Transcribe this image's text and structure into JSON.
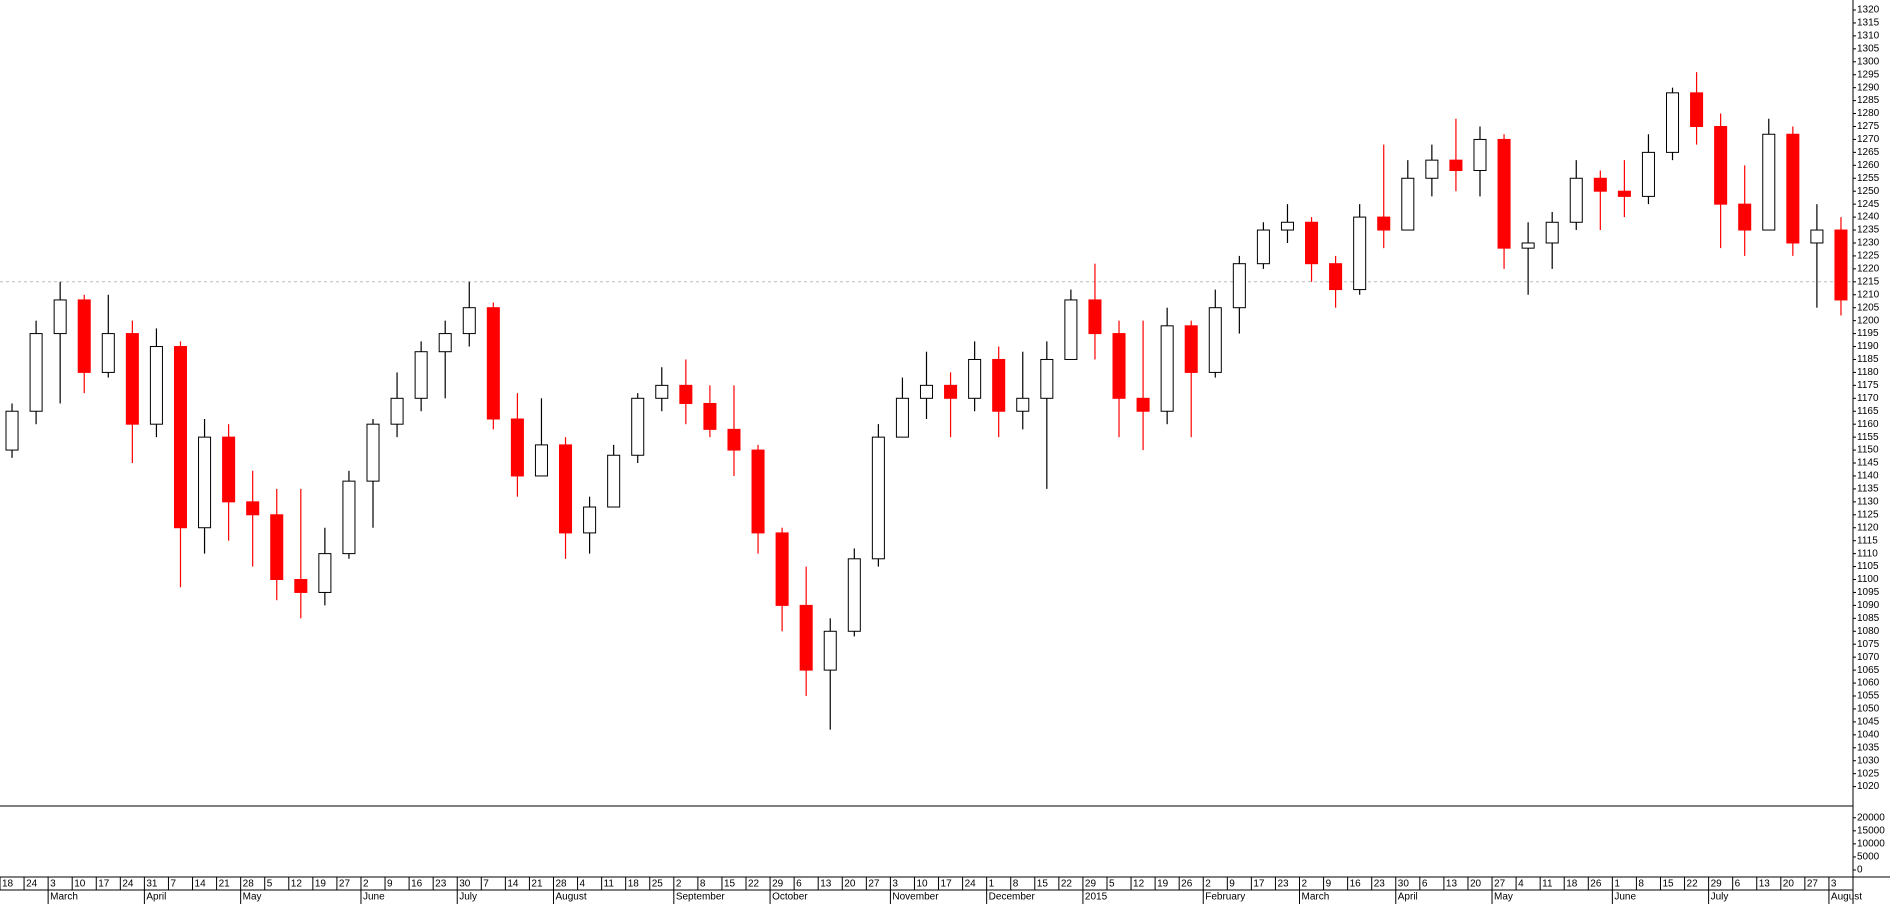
{
  "chart_data": {
    "type": "candlestick",
    "categories": [
      "18",
      "24",
      "3",
      "10",
      "17",
      "24",
      "31",
      "7",
      "14",
      "21",
      "28",
      "5",
      "12",
      "19",
      "27",
      "2",
      "9",
      "16",
      "23",
      "30",
      "7",
      "14",
      "21",
      "28",
      "4",
      "11",
      "18",
      "25",
      "2",
      "8",
      "15",
      "22",
      "29",
      "6",
      "13",
      "20",
      "27",
      "3",
      "10",
      "17",
      "24",
      "1",
      "8",
      "15",
      "22",
      "29",
      "5",
      "12",
      "19",
      "26",
      "2",
      "9",
      "17",
      "23",
      "2",
      "9",
      "16",
      "23",
      "30",
      "6",
      "13",
      "20",
      "27",
      "4",
      "11",
      "18",
      "26",
      "1",
      "8",
      "15",
      "22",
      "29",
      "6",
      "13",
      "20",
      "27",
      "3"
    ],
    "x_groups": [
      null,
      null,
      "March",
      null,
      null,
      null,
      "April",
      null,
      null,
      null,
      "May",
      null,
      null,
      null,
      null,
      "June",
      null,
      null,
      null,
      "July",
      null,
      null,
      null,
      "August",
      null,
      null,
      null,
      null,
      "September",
      null,
      null,
      null,
      "October",
      null,
      null,
      null,
      null,
      "November",
      null,
      null,
      null,
      "December",
      null,
      null,
      null,
      "2015",
      null,
      null,
      null,
      null,
      "February",
      null,
      null,
      null,
      "March",
      null,
      null,
      null,
      "April",
      null,
      null,
      null,
      "May",
      null,
      null,
      null,
      null,
      "June",
      null,
      null,
      null,
      "July",
      null,
      null,
      null,
      null,
      "August"
    ],
    "open": [
      1150,
      1165,
      1195,
      1208,
      1180,
      1195,
      1160,
      1190,
      1120,
      1155,
      1130,
      1125,
      1100,
      1095,
      1110,
      1138,
      1160,
      1170,
      1188,
      1195,
      1205,
      1162,
      1140,
      1152,
      1118,
      1128,
      1148,
      1170,
      1175,
      1168,
      1158,
      1150,
      1118,
      1090,
      1065,
      1080,
      1108,
      1155,
      1170,
      1175,
      1170,
      1185,
      1165,
      1170,
      1185,
      1208,
      1195,
      1170,
      1165,
      1198,
      1180,
      1205,
      1222,
      1235,
      1238,
      1222,
      1212,
      1240,
      1235,
      1255,
      1262,
      1258,
      1270,
      1228,
      1230,
      1238,
      1255,
      1250,
      1248,
      1265,
      1288,
      1275,
      1245,
      1235,
      1272,
      1230,
      1235
    ],
    "high": [
      1168,
      1200,
      1215,
      1210,
      1210,
      1200,
      1197,
      1192,
      1162,
      1160,
      1142,
      1135,
      1135,
      1120,
      1142,
      1162,
      1180,
      1192,
      1200,
      1215,
      1207,
      1172,
      1170,
      1155,
      1132,
      1152,
      1172,
      1182,
      1185,
      1175,
      1175,
      1152,
      1120,
      1105,
      1085,
      1112,
      1160,
      1178,
      1188,
      1180,
      1192,
      1190,
      1188,
      1192,
      1212,
      1222,
      1200,
      1200,
      1205,
      1200,
      1212,
      1225,
      1238,
      1245,
      1240,
      1225,
      1245,
      1268,
      1262,
      1268,
      1278,
      1275,
      1272,
      1238,
      1242,
      1262,
      1258,
      1262,
      1272,
      1290,
      1296,
      1280,
      1260,
      1278,
      1275,
      1245,
      1240
    ],
    "low": [
      1147,
      1160,
      1168,
      1172,
      1178,
      1145,
      1155,
      1097,
      1110,
      1115,
      1105,
      1092,
      1085,
      1090,
      1108,
      1120,
      1155,
      1165,
      1170,
      1190,
      1158,
      1132,
      1140,
      1108,
      1110,
      1128,
      1145,
      1165,
      1160,
      1155,
      1140,
      1110,
      1080,
      1055,
      1042,
      1078,
      1105,
      1155,
      1162,
      1155,
      1165,
      1155,
      1158,
      1135,
      1185,
      1185,
      1155,
      1150,
      1160,
      1155,
      1178,
      1195,
      1220,
      1230,
      1215,
      1205,
      1210,
      1228,
      1235,
      1248,
      1250,
      1248,
      1220,
      1210,
      1220,
      1235,
      1235,
      1240,
      1245,
      1262,
      1268,
      1228,
      1225,
      1235,
      1225,
      1205,
      1202
    ],
    "close": [
      1165,
      1195,
      1208,
      1180,
      1195,
      1160,
      1190,
      1120,
      1155,
      1130,
      1125,
      1100,
      1095,
      1110,
      1138,
      1160,
      1170,
      1188,
      1195,
      1205,
      1162,
      1140,
      1152,
      1118,
      1128,
      1148,
      1170,
      1175,
      1168,
      1158,
      1150,
      1118,
      1090,
      1065,
      1080,
      1108,
      1155,
      1170,
      1175,
      1170,
      1185,
      1165,
      1170,
      1185,
      1208,
      1195,
      1170,
      1165,
      1198,
      1180,
      1205,
      1222,
      1235,
      1238,
      1222,
      1212,
      1240,
      1235,
      1255,
      1262,
      1258,
      1270,
      1228,
      1230,
      1238,
      1255,
      1250,
      1248,
      1265,
      1288,
      1275,
      1245,
      1235,
      1272,
      1230,
      1235,
      1208
    ],
    "up_color": "#ffffff",
    "down_color": "#ff0000",
    "ylim": [
      1020,
      1320
    ],
    "yticks": [
      1020,
      1025,
      1030,
      1035,
      1040,
      1045,
      1050,
      1055,
      1060,
      1065,
      1070,
      1075,
      1080,
      1085,
      1090,
      1095,
      1100,
      1105,
      1110,
      1115,
      1120,
      1125,
      1130,
      1135,
      1140,
      1145,
      1150,
      1155,
      1160,
      1165,
      1170,
      1175,
      1180,
      1185,
      1190,
      1195,
      1200,
      1205,
      1210,
      1215,
      1220,
      1225,
      1230,
      1235,
      1240,
      1245,
      1250,
      1255,
      1260,
      1265,
      1270,
      1275,
      1280,
      1285,
      1290,
      1295,
      1300,
      1305,
      1310,
      1315,
      1320
    ],
    "reference_line": 1215,
    "volume_ylim": [
      0,
      24500
    ],
    "volume_yticks": [
      0,
      5000,
      10000,
      15000,
      20000
    ]
  }
}
